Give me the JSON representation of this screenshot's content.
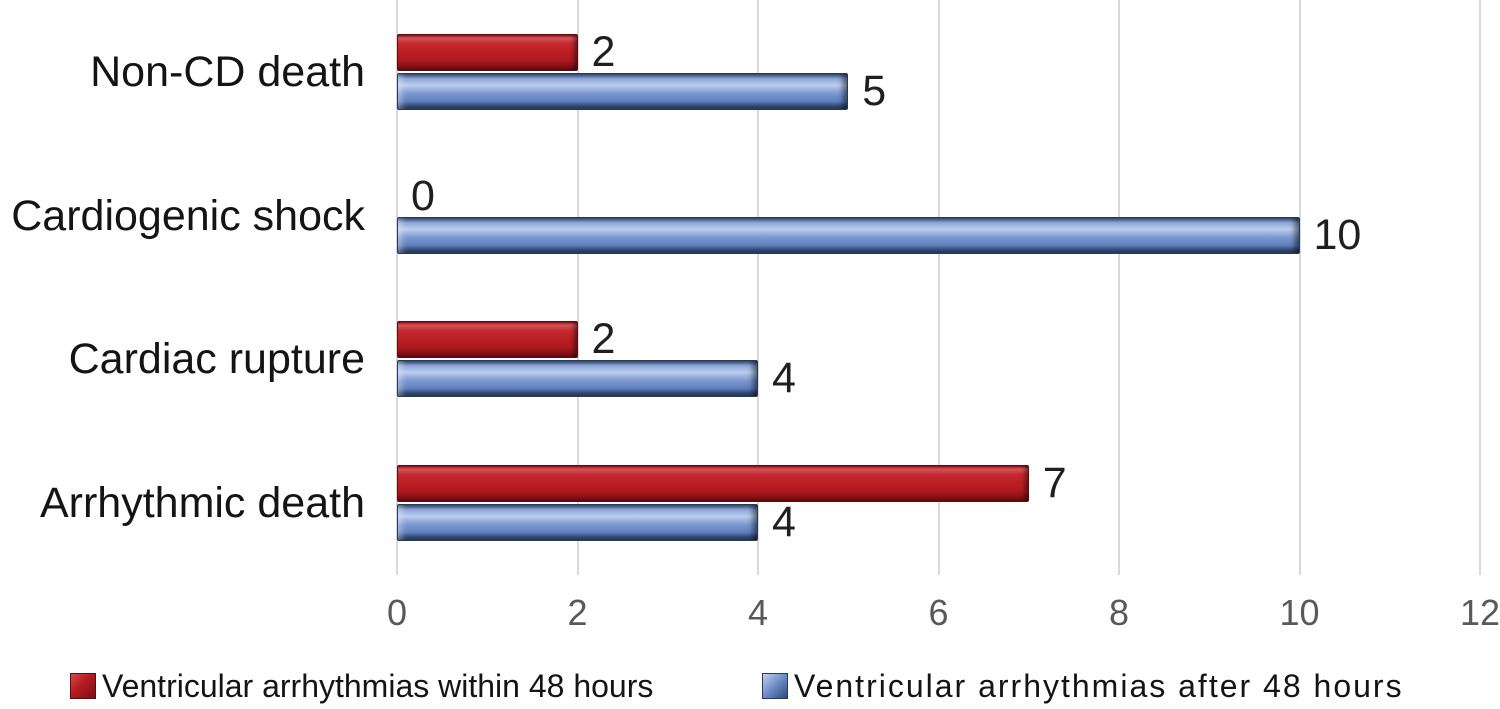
{
  "chart_data": {
    "type": "bar",
    "orientation": "horizontal",
    "title": "",
    "xlabel": "",
    "ylabel": "",
    "categories": [
      "Non-CD death",
      "Cardiogenic shock",
      "Cardiac rupture",
      "Arrhythmic death"
    ],
    "series": [
      {
        "name": "Ventricular arrhythmias within 48 hours",
        "color": "#b91d23",
        "values": [
          2,
          0,
          2,
          7
        ]
      },
      {
        "name": "Ventricular arrhythmias after 48 hours",
        "color": "#6e8cc7",
        "values": [
          5,
          10,
          4,
          4
        ]
      }
    ],
    "xlim": [
      0,
      12
    ],
    "xticks": [
      0,
      2,
      4,
      6,
      8,
      10,
      12
    ],
    "grid": "vertical",
    "data_labels": true,
    "legend_position": "bottom"
  },
  "colors": {
    "series_within_48h": "#b91d23",
    "series_after_48h": "#6e8cc7",
    "gridline": "#d9d9d9",
    "tick_text": "#595959",
    "label_text": "#141414",
    "background": "#ffffff"
  }
}
